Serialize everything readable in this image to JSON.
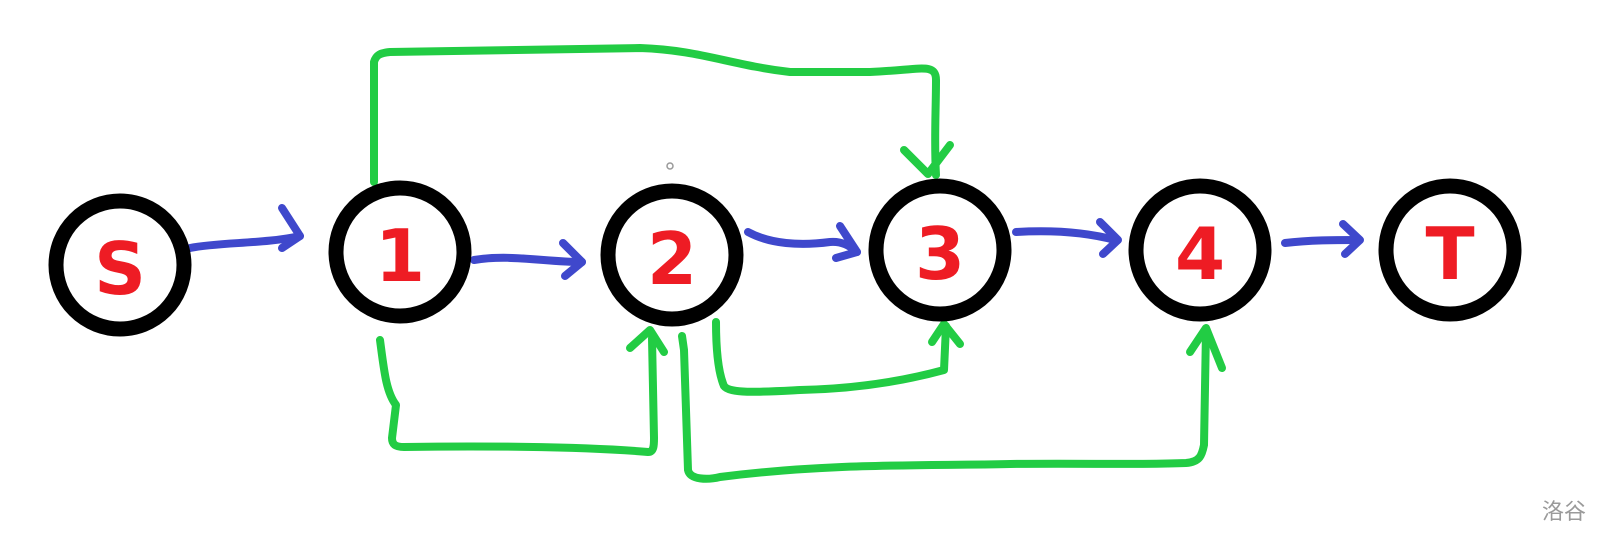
{
  "diagram": {
    "type": "flow-network",
    "colors": {
      "node_outline": "#000000",
      "node_label": "#ee1c24",
      "chain_edge": "#3f48cc",
      "skip_edge": "#22cc44"
    },
    "nodes": [
      {
        "id": "S",
        "label": "S"
      },
      {
        "id": "1",
        "label": "1"
      },
      {
        "id": "2",
        "label": "2"
      },
      {
        "id": "3",
        "label": "3"
      },
      {
        "id": "4",
        "label": "4"
      },
      {
        "id": "T",
        "label": "T"
      }
    ],
    "chain_edges": [
      {
        "from": "S",
        "to": "1"
      },
      {
        "from": "1",
        "to": "2"
      },
      {
        "from": "2",
        "to": "3"
      },
      {
        "from": "3",
        "to": "4"
      },
      {
        "from": "4",
        "to": "T"
      }
    ],
    "skip_edges": [
      {
        "from": "1",
        "to": "3",
        "side": "top"
      },
      {
        "from": "1",
        "to": "2",
        "side": "bottom"
      },
      {
        "from": "2",
        "to": "3",
        "side": "bottom"
      },
      {
        "from": "2",
        "to": "4",
        "side": "bottom"
      }
    ]
  },
  "watermark": "洛谷"
}
